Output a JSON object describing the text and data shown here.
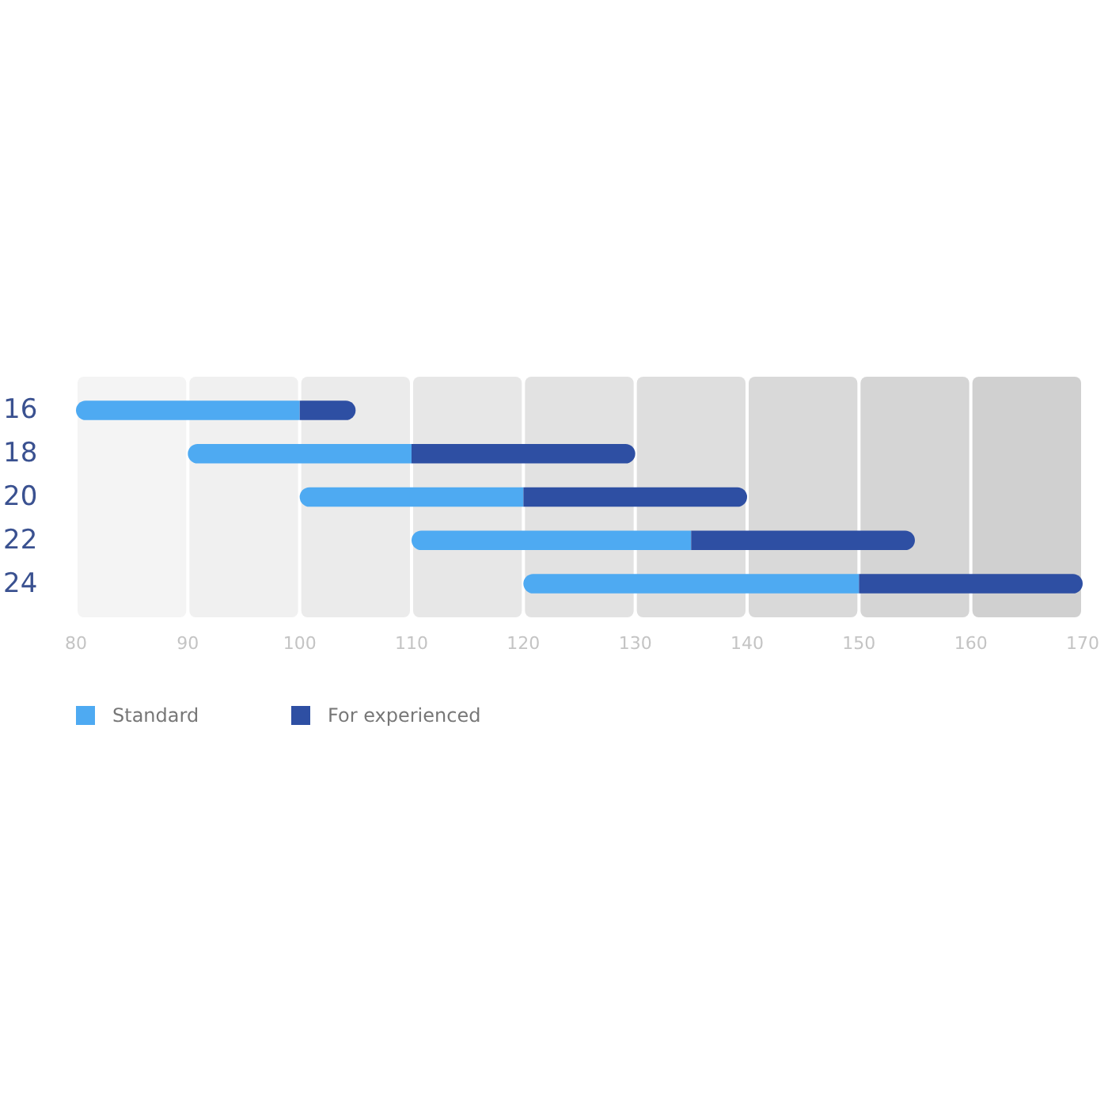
{
  "chart_data": {
    "type": "bar",
    "orientation": "horizontal",
    "categories": [
      "16",
      "18",
      "20",
      "22",
      "24"
    ],
    "series": [
      {
        "name": "Standard",
        "color": "#4eaaf2",
        "base": [
          80,
          90,
          100,
          110,
          120
        ],
        "values": [
          20,
          20,
          20,
          25,
          30
        ]
      },
      {
        "name": "For experienced",
        "color": "#2e4fa3",
        "base": [
          100,
          110,
          120,
          135,
          150
        ],
        "values": [
          5,
          20,
          20,
          20,
          20
        ]
      }
    ],
    "xlim": [
      80,
      170
    ],
    "xticks": [
      80,
      90,
      100,
      110,
      120,
      130,
      140,
      150,
      160,
      170
    ],
    "legend": "bottom left",
    "grid": false
  }
}
